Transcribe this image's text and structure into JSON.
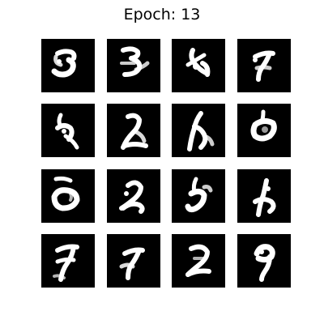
{
  "figure": {
    "title": "Epoch: 13",
    "background_color": "#ffffff",
    "tile_background_color": "#000000",
    "stroke_color": "#ffffff"
  },
  "grid": {
    "rows": 4,
    "cols": 4,
    "samples": [
      {
        "id": "sample-1-1",
        "digit_hint": "5"
      },
      {
        "id": "sample-1-2",
        "digit_hint": "3"
      },
      {
        "id": "sample-1-3",
        "digit_hint": "blob"
      },
      {
        "id": "sample-1-4",
        "digit_hint": "7"
      },
      {
        "id": "sample-2-1",
        "digit_hint": "blob"
      },
      {
        "id": "sample-2-2",
        "digit_hint": "2"
      },
      {
        "id": "sample-2-3",
        "digit_hint": "blob"
      },
      {
        "id": "sample-2-4",
        "digit_hint": "blob"
      },
      {
        "id": "sample-3-1",
        "digit_hint": "blob"
      },
      {
        "id": "sample-3-2",
        "digit_hint": "2"
      },
      {
        "id": "sample-3-3",
        "digit_hint": "blob"
      },
      {
        "id": "sample-3-4",
        "digit_hint": "blob"
      },
      {
        "id": "sample-4-1",
        "digit_hint": "7"
      },
      {
        "id": "sample-4-2",
        "digit_hint": "7"
      },
      {
        "id": "sample-4-3",
        "digit_hint": "2"
      },
      {
        "id": "sample-4-4",
        "digit_hint": "9"
      }
    ]
  }
}
